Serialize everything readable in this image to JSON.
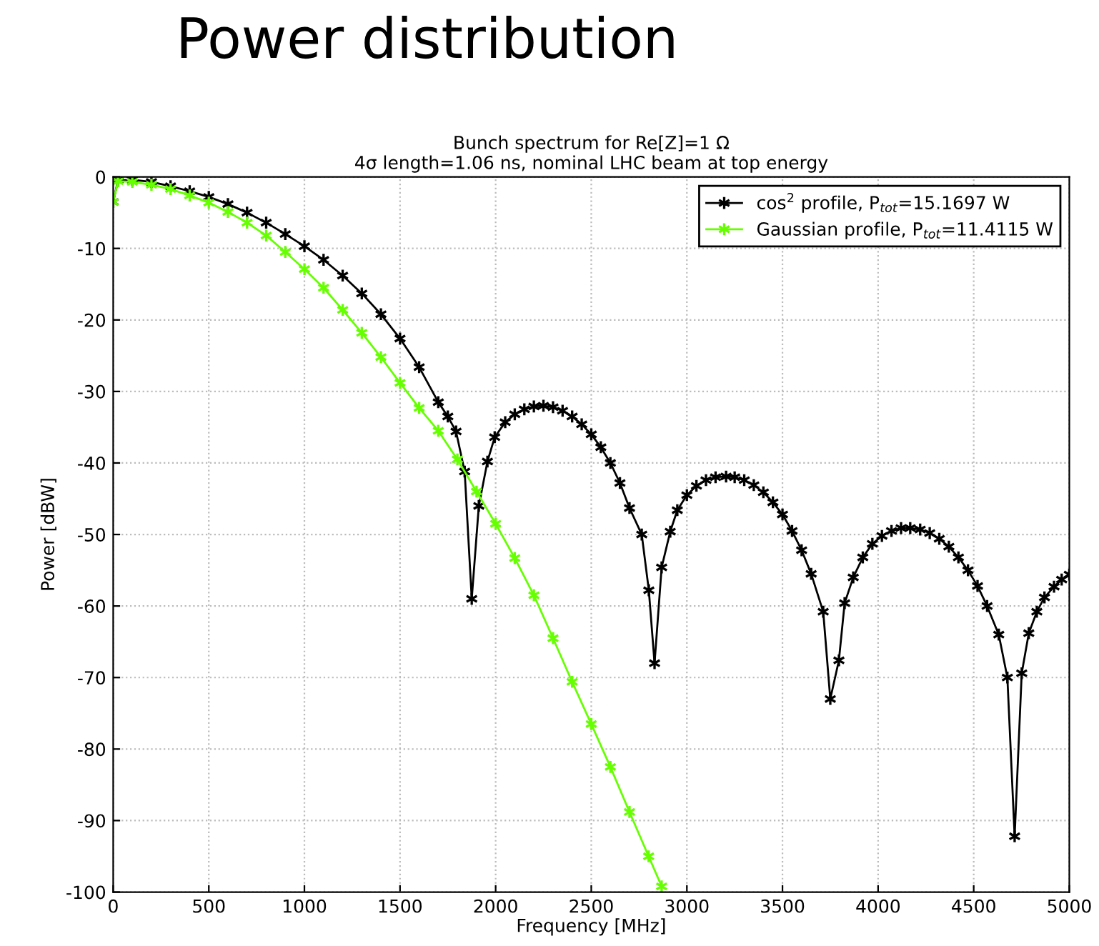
{
  "chart_data": {
    "type": "line",
    "title": "Power distribution",
    "subtitle": "Bunch spectrum for Re[Z]=1 Ω\n4σ length=1.06 ns, nominal LHC beam at top energy",
    "xlabel": "Frequency [MHz]",
    "ylabel": "Power [dBW]",
    "xlim": [
      0,
      5000
    ],
    "ylim": [
      -100,
      0
    ],
    "xticks": [
      0,
      500,
      1000,
      1500,
      2000,
      2500,
      3000,
      3500,
      4000,
      4500,
      5000
    ],
    "yticks": [
      -100,
      -90,
      -80,
      -70,
      -60,
      -50,
      -40,
      -30,
      -20,
      -10,
      0
    ],
    "grid": true,
    "legend": "top right",
    "marker": "cross",
    "line_style": "solid",
    "series": [
      {
        "name": "cos$^{2}$ profile, P$_{tot}$=15.1697 W",
        "color": "#000000",
        "x": [
          0,
          25,
          100,
          200,
          300,
          400,
          500,
          600,
          700,
          800,
          900,
          1000,
          1100,
          1200,
          1300,
          1400,
          1500,
          1600,
          1700,
          1750,
          1793,
          1838,
          1875,
          1912,
          1957,
          1995,
          2050,
          2100,
          2150,
          2200,
          2250,
          2300,
          2350,
          2400,
          2450,
          2500,
          2550,
          2600,
          2650,
          2700,
          2764,
          2801,
          2831,
          2868,
          2913,
          2950,
          3000,
          3050,
          3100,
          3150,
          3205,
          3250,
          3300,
          3350,
          3400,
          3450,
          3500,
          3550,
          3600,
          3650,
          3713,
          3750,
          3795,
          3825,
          3870,
          3920,
          3970,
          4020,
          4070,
          4120,
          4168,
          4220,
          4270,
          4320,
          4370,
          4420,
          4470,
          4520,
          4570,
          4631,
          4676,
          4714,
          4751,
          4788,
          4830,
          4870,
          4920,
          4960,
          5000
        ],
        "values": [
          -3.5,
          -0.5,
          -0.4,
          -0.7,
          -1.3,
          -2.0,
          -2.8,
          -3.8,
          -5,
          -6.4,
          -8,
          -9.7,
          -11.6,
          -13.8,
          -16.3,
          -19.2,
          -22.6,
          -26.6,
          -31.5,
          -33.5,
          -35.6,
          -41.2,
          -59,
          -46,
          -39.8,
          -36.4,
          -34.3,
          -33.2,
          -32.5,
          -32.1,
          -32,
          -32.2,
          -32.7,
          -33.5,
          -34.6,
          -36,
          -37.8,
          -40,
          -42.8,
          -46.3,
          -50,
          -57.8,
          -68,
          -54.6,
          -49.6,
          -46.6,
          -44.5,
          -43.2,
          -42.4,
          -42,
          -41.9,
          -42,
          -42.4,
          -43.1,
          -44.1,
          -45.5,
          -47.2,
          -49.5,
          -52.2,
          -55.5,
          -60.8,
          -73,
          -67.6,
          -59.6,
          -56,
          -53.2,
          -51.3,
          -50.2,
          -49.5,
          -49.1,
          -49.1,
          -49.3,
          -49.8,
          -50.6,
          -51.7,
          -53.2,
          -55,
          -57.2,
          -60,
          -64,
          -70,
          -92.2,
          -69.4,
          -63.8,
          -60.8,
          -58.8,
          -57.3,
          -56.3,
          -55.6
        ]
      },
      {
        "name": "Gaussian profile, P$_{tot}$=11.4115 W",
        "color": "#66ff00",
        "x": [
          0,
          25,
          100,
          200,
          300,
          400,
          500,
          600,
          700,
          800,
          900,
          1000,
          1100,
          1200,
          1300,
          1400,
          1500,
          1600,
          1700,
          1800,
          1900,
          2000,
          2100,
          2200,
          2300,
          2400,
          2500,
          2600,
          2700,
          2800,
          2868
        ],
        "values": [
          -3.5,
          -0.6,
          -0.7,
          -1.1,
          -1.7,
          -2.6,
          -3.6,
          -4.9,
          -6.4,
          -8.2,
          -10.5,
          -12.9,
          -15.5,
          -18.6,
          -21.8,
          -25.2,
          -28.8,
          -32.3,
          -35.5,
          -39.5,
          -44,
          -48.5,
          -53.3,
          -58.5,
          -64.5,
          -70.6,
          -76.5,
          -82.5,
          -88.8,
          -95,
          -99.2
        ]
      }
    ]
  }
}
